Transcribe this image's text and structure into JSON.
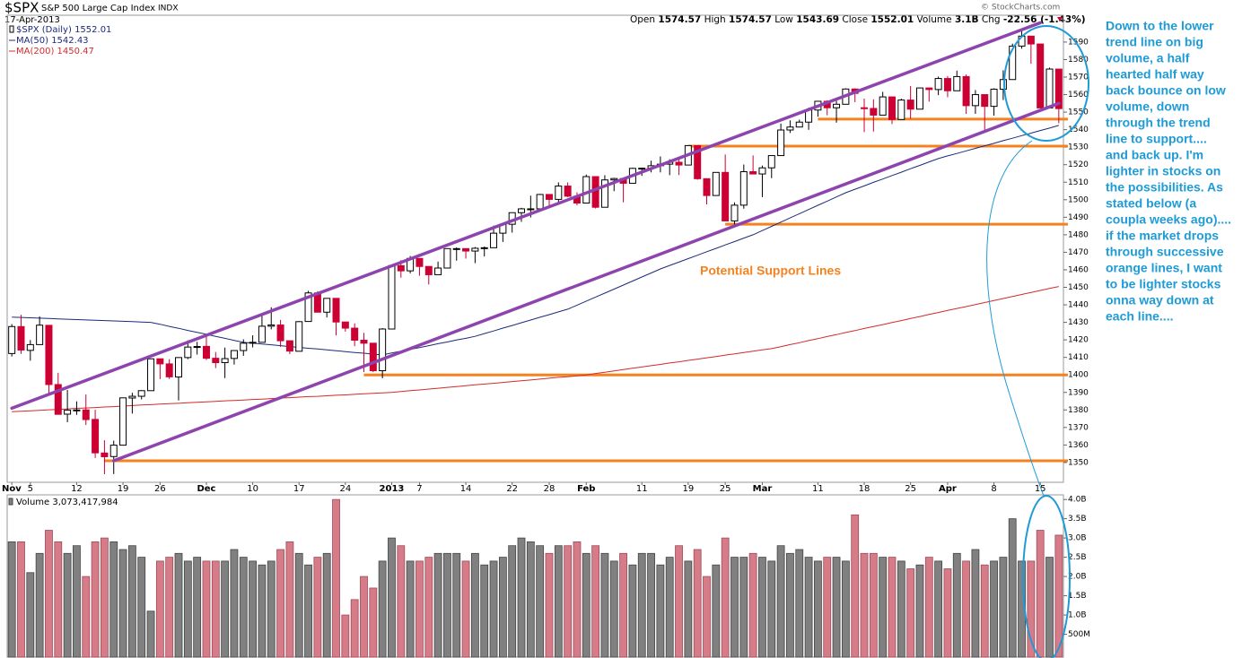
{
  "chart_data": {
    "type": "candlestick",
    "symbol": "$SPX",
    "name": "S&P 500 Large Cap Index",
    "exchange": "INDX",
    "date": "17-Apr-2013",
    "watermark": "© StockCharts.com",
    "quote": {
      "open_label": "Open",
      "high_label": "High",
      "low_label": "Low",
      "close_label": "Close",
      "volume_label": "Volume",
      "volume": "3.1B",
      "chg_label": "Chg",
      "chg": "-22.56 (-1.43%)"
    },
    "price_name": "$SPX (Daily)",
    "categories": [
      "Nov",
      null,
      "5",
      null,
      null,
      null,
      null,
      "12",
      null,
      null,
      null,
      null,
      "19",
      null,
      null,
      null,
      "26",
      null,
      null,
      null,
      null,
      "Dec",
      null,
      null,
      null,
      null,
      "10",
      null,
      null,
      null,
      null,
      "17",
      null,
      null,
      null,
      null,
      "24",
      null,
      null,
      null,
      null,
      "2013",
      null,
      null,
      "7",
      null,
      null,
      null,
      null,
      "14",
      null,
      null,
      null,
      null,
      "22",
      null,
      null,
      null,
      "28",
      null,
      null,
      null,
      "Feb",
      null,
      null,
      null,
      null,
      null,
      "11",
      null,
      null,
      null,
      null,
      "19",
      null,
      null,
      null,
      "25",
      null,
      null,
      null,
      "Mar",
      null,
      null,
      null,
      null,
      null,
      "11",
      null,
      null,
      null,
      null,
      "18",
      null,
      null,
      null,
      null,
      "25",
      null,
      null,
      null,
      "Apr",
      null,
      null,
      null,
      null,
      "8",
      null,
      null,
      null,
      null,
      "15",
      null,
      null
    ],
    "open": [
      1412.2,
      1427.6,
      1414.0,
      1417.3,
      1428.3,
      1394.5,
      1377.6,
      1379.9,
      1380.0,
      1374.6,
      1355.4,
      1353.4,
      1359.9,
      1386.8,
      1387.8,
      1391.0,
      1409.2,
      1406.3,
      1398.8,
      1409.9,
      1415.9,
      1416.3,
      1409.5,
      1407.0,
      1409.4,
      1413.9,
      1418.1,
      1418.6,
      1427.8,
      1428.5,
      1419.5,
      1413.5,
      1430.5,
      1446.8,
      1435.8,
      1443.7,
      1430.2,
      1426.7,
      1419.8,
      1418.1,
      1402.4,
      1426.2,
      1462.4,
      1459.4,
      1466.5,
      1461.9,
      1457.2,
      1461.0,
      1472.1,
      1472.1,
      1470.7,
      1472.3,
      1472.6,
      1480.9,
      1486.0,
      1492.6,
      1494.8,
      1494.8,
      1503.0,
      1500.2,
      1507.8,
      1502.0,
      1498.1,
      1513.2,
      1495.7,
      1511.3,
      1512.1,
      1509.4,
      1517.9,
      1518.0,
      1519.4,
      1520.3,
      1521.4,
      1519.8,
      1530.9,
      1512.0,
      1502.4,
      1515.6,
      1487.9,
      1496.9,
      1516.0,
      1514.7,
      1518.2,
      1525.2,
      1539.8,
      1541.5,
      1544.3,
      1551.2,
      1556.2,
      1552.5,
      1554.5,
      1563.2,
      1552.5,
      1552.1,
      1548.3,
      1558.7,
      1545.8,
      1556.9,
      1551.7,
      1563.8,
      1562.9,
      1569.2,
      1562.2,
      1570.3,
      1553.7,
      1560.0,
      1553.3,
      1563.1,
      1568.6,
      1587.7,
      1593.4,
      1588.9,
      1552.4,
      1574.57
    ],
    "high": [
      1429.0,
      1434.3,
      1419.9,
      1433.4,
      1428.3,
      1401.2,
      1391.4,
      1384.9,
      1388.8,
      1380.1,
      1362.7,
      1362.5,
      1386.9,
      1389.8,
      1391.3,
      1409.2,
      1409.2,
      1409.0,
      1410.0,
      1419.7,
      1418.9,
      1423.2,
      1413.1,
      1415.6,
      1413.9,
      1420.3,
      1422.6,
      1434.3,
      1438.6,
      1431.4,
      1419.5,
      1430.7,
      1448.0,
      1447.8,
      1443.7,
      1443.7,
      1430.2,
      1429.4,
      1424.0,
      1418.1,
      1426.7,
      1462.4,
      1465.5,
      1467.9,
      1466.5,
      1461.9,
      1464.7,
      1472.3,
      1472.8,
      1472.1,
      1473.0,
      1473.3,
      1485.2,
      1486.0,
      1492.6,
      1495.4,
      1502.3,
      1503.3,
      1503.2,
      1509.9,
      1509.9,
      1504.2,
      1514.4,
      1513.2,
      1514.0,
      1512.5,
      1512.1,
      1518.3,
      1518.3,
      1522.3,
      1524.7,
      1523.1,
      1524.2,
      1530.9,
      1530.9,
      1512.0,
      1515.6,
      1525.8,
      1498.5,
      1520.1,
      1525.3,
      1519.5,
      1525.3,
      1543.5,
      1545.3,
      1545.7,
      1552.5,
      1556.3,
      1556.8,
      1556.4,
      1563.6,
      1563.6,
      1557.7,
      1557.3,
      1561.6,
      1558.7,
      1557.7,
      1564.9,
      1564.0,
      1564.1,
      1570.3,
      1570.6,
      1573.7,
      1571.5,
      1562.6,
      1560.0,
      1563.6,
      1573.9,
      1589.1,
      1597.3,
      1593.4,
      1588.9,
      1575.4,
      1574.57
    ],
    "low": [
      1410.5,
      1412.0,
      1408.1,
      1417.3,
      1388.1,
      1377.5,
      1373.0,
      1377.2,
      1371.4,
      1352.6,
      1343.3,
      1343.4,
      1359.9,
      1377.9,
      1386.0,
      1391.0,
      1397.6,
      1397.7,
      1385.4,
      1409.0,
      1411.6,
      1408.5,
      1403.9,
      1398.2,
      1405.9,
      1410.9,
      1415.7,
      1418.6,
      1426.0,
      1416.0,
      1411.9,
      1413.5,
      1430.5,
      1435.8,
      1432.8,
      1422.6,
      1424.7,
      1416.4,
      1401.6,
      1401.6,
      1398.1,
      1426.2,
      1455.5,
      1458.0,
      1456.6,
      1451.6,
      1457.2,
      1461.0,
      1465.2,
      1466.4,
      1463.8,
      1467.6,
      1472.6,
      1475.9,
      1481.2,
      1487.4,
      1489.9,
      1494.8,
      1496.3,
      1498.0,
      1501.5,
      1496.8,
      1498.1,
      1495.0,
      1495.7,
      1504.9,
      1498.5,
      1509.4,
      1513.6,
      1515.6,
      1515.6,
      1514.0,
      1514.1,
      1519.8,
      1511.4,
      1497.3,
      1502.4,
      1487.9,
      1485.0,
      1494.9,
      1514.5,
      1501.5,
      1512.3,
      1525.2,
      1538.1,
      1541.5,
      1539.9,
      1547.4,
      1548.2,
      1544.0,
      1554.5,
      1555.7,
      1538.6,
      1538.9,
      1548.3,
      1543.2,
      1545.8,
      1546.2,
      1551.7,
      1556.0,
      1559.7,
      1558.5,
      1562.2,
      1549.0,
      1549.0,
      1539.5,
      1548.0,
      1556.9,
      1568.6,
      1586.2,
      1577.6,
      1552.4,
      1552.4,
      1543.69
    ],
    "close": [
      1427.6,
      1414.2,
      1417.3,
      1428.4,
      1394.5,
      1377.5,
      1379.9,
      1380.0,
      1374.5,
      1355.5,
      1353.3,
      1359.9,
      1386.9,
      1387.8,
      1391.0,
      1409.2,
      1406.3,
      1398.9,
      1409.9,
      1415.9,
      1416.2,
      1409.5,
      1407.0,
      1409.3,
      1413.9,
      1418.1,
      1418.6,
      1427.8,
      1428.5,
      1419.5,
      1413.6,
      1430.4,
      1446.8,
      1435.8,
      1443.7,
      1430.2,
      1426.7,
      1419.8,
      1418.1,
      1402.4,
      1426.2,
      1462.4,
      1459.4,
      1466.5,
      1461.9,
      1457.2,
      1461.0,
      1472.1,
      1472.1,
      1470.7,
      1472.3,
      1472.6,
      1480.9,
      1486.0,
      1492.6,
      1494.8,
      1494.8,
      1503.0,
      1500.2,
      1507.8,
      1502.0,
      1498.1,
      1513.2,
      1495.7,
      1511.3,
      1512.1,
      1509.4,
      1517.9,
      1518.0,
      1519.4,
      1520.3,
      1521.4,
      1519.8,
      1530.9,
      1512.0,
      1502.4,
      1515.6,
      1487.9,
      1496.9,
      1516.0,
      1514.7,
      1518.2,
      1525.2,
      1539.8,
      1541.5,
      1544.3,
      1551.2,
      1556.2,
      1552.5,
      1554.5,
      1563.2,
      1560.7,
      1552.1,
      1548.3,
      1558.7,
      1545.8,
      1556.9,
      1551.7,
      1563.8,
      1562.9,
      1569.2,
      1562.2,
      1570.3,
      1553.7,
      1560.0,
      1553.3,
      1563.1,
      1568.6,
      1587.7,
      1593.4,
      1588.9,
      1552.4,
      1574.6,
      1552.01
    ],
    "up_color": "#000000",
    "down_color": "#cc0033",
    "lines": [
      {
        "name": "MA(50)",
        "color": "#1c2a7a",
        "values": [
          1433,
          1432.8,
          1432.6,
          1432.4,
          1432.2,
          1432,
          1431.8,
          1431.6,
          1431.4,
          1431.2,
          1431,
          1430.8,
          1430.6,
          1430.4,
          1430.2,
          1430,
          1428.9,
          1427.7,
          1426.6,
          1425.4,
          1424.3,
          1423.2,
          1422,
          1420.9,
          1419.7,
          1418.6,
          1418.1,
          1417.6,
          1417.2,
          1416.7,
          1416.2,
          1415.7,
          1415.2,
          1414.8,
          1414.3,
          1413.8,
          1413.3,
          1412.8,
          1412.4,
          1411.9,
          1411.4,
          1412.5,
          1413.5,
          1414.6,
          1415.6,
          1416.7,
          1417.8,
          1418.8,
          1419.9,
          1420.9,
          1422,
          1423.6,
          1425.1,
          1426.7,
          1428.2,
          1429.8,
          1431.3,
          1432.9,
          1434.4,
          1436,
          1437.5,
          1439.8,
          1442.1,
          1444.4,
          1446.7,
          1449,
          1451.3,
          1453.6,
          1455.9,
          1458.2,
          1460.5,
          1462.5,
          1464.4,
          1466.4,
          1468.3,
          1470.3,
          1472.2,
          1474.2,
          1476.1,
          1478.1,
          1480,
          1482.4,
          1484.8,
          1487.2,
          1489.6,
          1492,
          1494.4,
          1496.8,
          1499.2,
          1501.6,
          1504,
          1506,
          1507.9,
          1509.9,
          1511.8,
          1513.8,
          1515.7,
          1517.7,
          1519.6,
          1521.6,
          1523.5,
          1525,
          1526.4,
          1527.9,
          1529.3,
          1530.8,
          1532.2,
          1533.7,
          1535.1,
          1536.6,
          1538,
          1539.5,
          1540.9,
          1542.43
        ]
      },
      {
        "name": "MA(200)",
        "color": "#d42a2a",
        "values": [
          1379,
          1379.3,
          1379.5,
          1379.8,
          1380.1,
          1380.3,
          1380.6,
          1380.9,
          1381.1,
          1381.4,
          1381.7,
          1381.9,
          1382.2,
          1382.5,
          1382.8,
          1383,
          1383.3,
          1383.6,
          1383.8,
          1384.1,
          1384.4,
          1384.6,
          1384.9,
          1385.2,
          1385.4,
          1385.7,
          1386,
          1386.2,
          1386.5,
          1386.8,
          1387,
          1387.3,
          1387.6,
          1387.8,
          1388.1,
          1388.4,
          1388.6,
          1388.9,
          1389.2,
          1389.5,
          1389.7,
          1390,
          1390.5,
          1391,
          1391.4,
          1391.9,
          1392.4,
          1392.9,
          1393.3,
          1393.8,
          1394.3,
          1394.8,
          1395.2,
          1395.7,
          1396.2,
          1396.7,
          1397.1,
          1397.6,
          1398.1,
          1398.6,
          1399,
          1399.5,
          1400,
          1400.8,
          1401.5,
          1402.3,
          1403,
          1403.8,
          1404.5,
          1405.3,
          1406,
          1406.8,
          1407.5,
          1408.3,
          1409,
          1409.8,
          1410.5,
          1411.3,
          1412,
          1412.8,
          1413.5,
          1414.3,
          1415,
          1416.1,
          1417.3,
          1418.4,
          1419.6,
          1420.7,
          1421.9,
          1423,
          1424.2,
          1425.3,
          1426.5,
          1427.6,
          1428.7,
          1429.9,
          1431,
          1432.2,
          1433.3,
          1434.5,
          1435.6,
          1436.8,
          1437.9,
          1439,
          1440.2,
          1441.3,
          1442.5,
          1443.6,
          1444.8,
          1445.9,
          1447.1,
          1448.2,
          1449.4,
          1450.47
        ]
      }
    ],
    "ylim": [
      1338.7,
      1604.8
    ],
    "yticks": [
      1350,
      1360,
      1370,
      1380,
      1390,
      1400,
      1410,
      1420,
      1430,
      1440,
      1450,
      1460,
      1470,
      1480,
      1490,
      1500,
      1510,
      1520,
      1530,
      1540,
      1550,
      1560,
      1570,
      1580,
      1590
    ],
    "grid": false,
    "trend_lines": [
      {
        "color": "#8e44ad",
        "x": [
          0,
          111
        ],
        "y": [
          1381,
          1601
        ]
      },
      {
        "color": "#8e44ad",
        "x": [
          11,
          113
        ],
        "y": [
          1351,
          1555
        ]
      }
    ],
    "support_lines": {
      "color": "#f5821f",
      "lines": [
        {
          "value": 1351,
          "start": 10
        },
        {
          "value": 1400,
          "start": 38
        },
        {
          "value": 1486,
          "start": 77
        },
        {
          "value": 1530.6,
          "start": 73
        },
        {
          "value": 1546,
          "start": 87
        }
      ]
    },
    "annotation": "Potential Support Lines",
    "note_lines": [
      "Down to the lower",
      "trend line on big",
      "volume, a half",
      "hearted half way",
      "back bounce on low",
      "volume, down",
      "through the trend",
      "line to support....",
      "and back up.  I'm",
      "lighter in stocks on",
      "the possibilities.  As",
      "stated below (a",
      "coupla weeks ago)....",
      "if the market drops",
      "through successive",
      "orange lines, I want",
      "to be lighter stocks",
      "onna way down at",
      "each line...."
    ],
    "volume": {
      "name": "Volume",
      "value_label": "3,073,417,984",
      "up_color": "#808080",
      "down_color": "#d67b88",
      "values": [
        2900000000.0,
        2900000000.0,
        2100000000.0,
        2600000000.0,
        3200000000.0,
        2900000000.0,
        2600000000.0,
        2800000000.0,
        2000000000.0,
        2900000000.0,
        3000000000.0,
        2900000000.0,
        2700000000.0,
        2800000000.0,
        2500000000.0,
        1100000000.0,
        2400000000.0,
        2500000000.0,
        2600000000.0,
        2400000000.0,
        2500000000.0,
        2400000000.0,
        2400000000.0,
        2400000000.0,
        2700000000.0,
        2500000000.0,
        2400000000.0,
        2300000000.0,
        2400000000.0,
        2700000000.0,
        2900000000.0,
        2600000000.0,
        2300000000.0,
        2500000000.0,
        2600000000.0,
        4000000000.0,
        1000000000.0,
        1400000000.0,
        2000000000.0,
        1700000000.0,
        2400000000.0,
        3000000000.0,
        2800000000.0,
        2400000000.0,
        2400000000.0,
        2500000000.0,
        2600000000.0,
        2600000000.0,
        2600000000.0,
        2400000000.0,
        2600000000.0,
        2300000000.0,
        2400000000.0,
        2500000000.0,
        2800000000.0,
        3000000000.0,
        2900000000.0,
        2800000000.0,
        2600000000.0,
        2800000000.0,
        2800000000.0,
        2900000000.0,
        2600000000.0,
        2800000000.0,
        2600000000.0,
        2400000000.0,
        2600000000.0,
        2300000000.0,
        2600000000.0,
        2600000000.0,
        2300000000.0,
        2500000000.0,
        2800000000.0,
        2400000000.0,
        2700000000.0,
        2000000000.0,
        2300000000.0,
        3000000000.0,
        2500000000.0,
        2500000000.0,
        2600000000.0,
        2500000000.0,
        2400000000.0,
        2800000000.0,
        2600000000.0,
        2700000000.0,
        2500000000.0,
        2400000000.0,
        2500000000.0,
        2500000000.0,
        2400000000.0,
        3600000000.0,
        2600000000.0,
        2600000000.0,
        2500000000.0,
        2500000000.0,
        2400000000.0,
        2200000000.0,
        2300000000.0,
        2500000000.0,
        2400000000.0,
        2200000000.0,
        2600000000.0,
        2400000000.0,
        2700000000.0,
        2300000000.0,
        2400000000.0,
        2500000000.0,
        3500000000.0,
        2400000000.0,
        2400000000.0,
        3200000000.0,
        2500000000.0,
        3073417984
      ],
      "ylim": [
        0,
        4120000000.0
      ],
      "yticks": [
        {
          "value": 500000000.0,
          "label": "500M"
        },
        {
          "value": 1000000000.0,
          "label": "1.0B"
        },
        {
          "value": 1500000000.0,
          "label": "1.5B"
        },
        {
          "value": 2000000000.0,
          "label": "2.0B"
        },
        {
          "value": 2500000000.0,
          "label": "2.5B"
        },
        {
          "value": 3000000000.0,
          "label": "3.0B"
        },
        {
          "value": 3500000000.0,
          "label": "3.5B"
        },
        {
          "value": 4000000000.0,
          "label": "4.0B"
        }
      ]
    }
  }
}
